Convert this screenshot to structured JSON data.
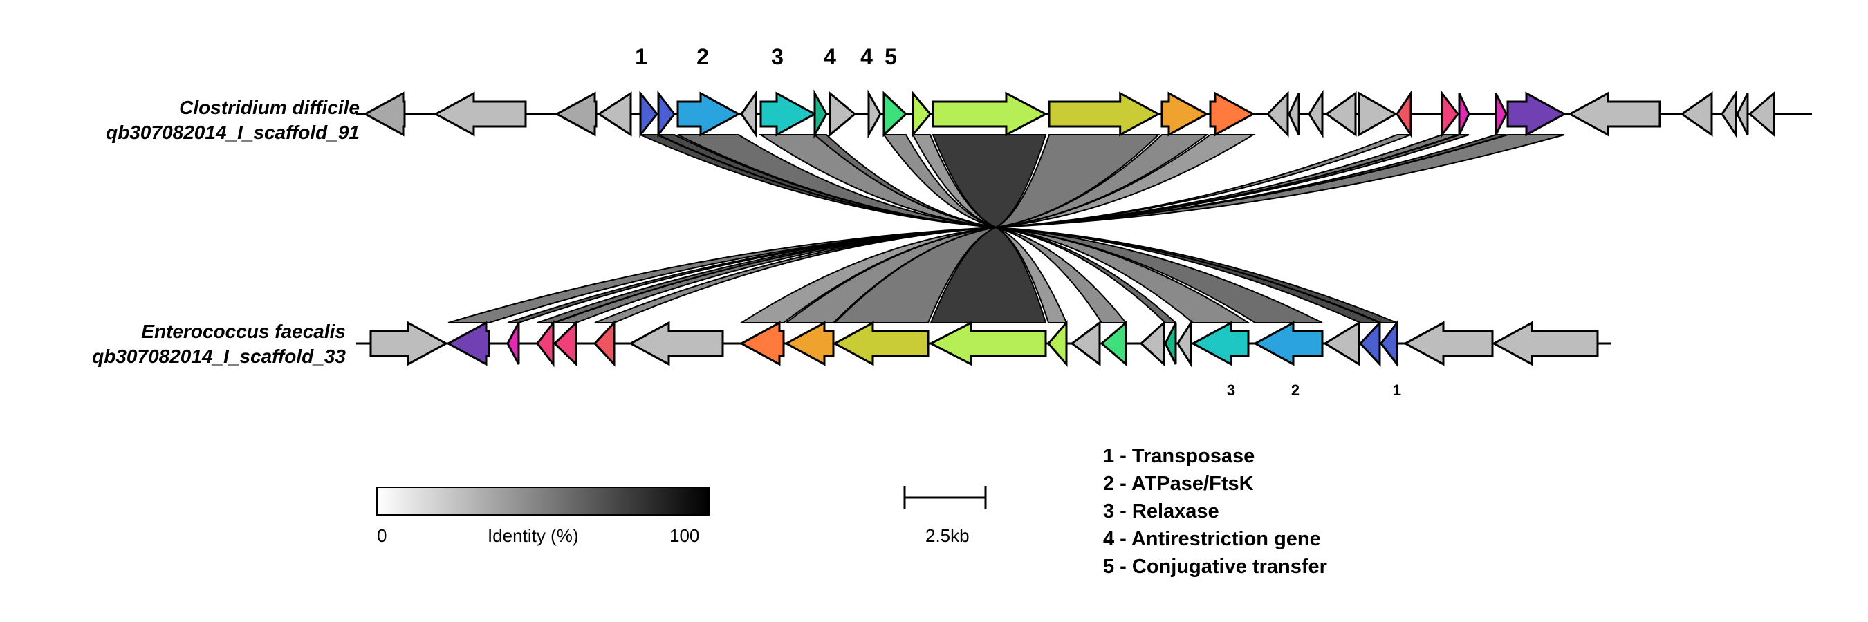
{
  "genomes": [
    {
      "name": "Clostridium difficile",
      "scaffold": "qb307082014_I_scaffold_91"
    },
    {
      "name": "Enterococcus faecalis",
      "scaffold": "qb307082014_I_scaffold_33"
    }
  ],
  "top_marker_labels": [
    "1",
    "2",
    "3",
    "4",
    "4",
    "5"
  ],
  "bottom_marker_labels": [
    "3",
    "2",
    "1"
  ],
  "legend": [
    "1 - Transposase",
    "2 - ATPase/FtsK",
    "3 - Relaxase",
    "4 - Antirestriction gene",
    "5 - Conjugative transfer"
  ],
  "colorbar": {
    "min_label": "0",
    "title": "Identity (%)",
    "max_label": "100"
  },
  "scale_bar": {
    "label": "2.5kb"
  },
  "colors": {
    "grey": "#bdbdbd",
    "grey_dark": "#a8a8a8",
    "transposase": "#4c5fd0",
    "atpase": "#2aa3df",
    "relaxase": "#1ec6c4",
    "teal": "#18b78b",
    "green": "#3ee07c",
    "lime": "#b5ee55",
    "olive": "#c9cc35",
    "orange": "#f0a22e",
    "orange_red": "#ff7a3c",
    "red": "#ef5560",
    "pink": "#f0407a",
    "magenta": "#e12bb4",
    "purple": "#7141b4"
  }
}
